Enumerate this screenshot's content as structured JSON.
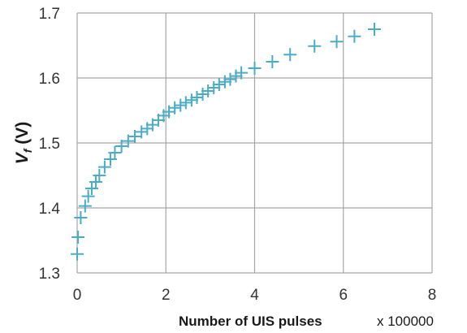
{
  "chart_data": {
    "type": "scatter",
    "xlabel": "Number of UIS pulses",
    "x_multiplier": "x 100000",
    "ylabel_main": "V",
    "ylabel_sub": "f",
    "ylabel_unit": "(V)",
    "xlim": [
      0,
      8
    ],
    "ylim": [
      1.3,
      1.7
    ],
    "xticks": [
      "0",
      "2",
      "4",
      "6",
      "8"
    ],
    "yticks": [
      "1.3",
      "1.4",
      "1.5",
      "1.6",
      "1.7"
    ],
    "grid": true,
    "marker": "plus",
    "color": "#4bacc6",
    "series": [
      {
        "x": [
          0.0,
          0.02,
          0.08,
          0.18,
          0.25,
          0.33,
          0.42,
          0.5,
          0.62,
          0.75,
          0.85,
          1.0,
          1.15,
          1.3,
          1.45,
          1.58,
          1.7,
          1.83,
          1.95,
          2.07,
          2.2,
          2.33,
          2.45,
          2.58,
          2.7,
          2.83,
          2.95,
          3.08,
          3.2,
          3.33,
          3.45,
          3.58,
          3.7,
          4.0,
          4.4,
          4.8,
          5.35,
          5.85,
          6.25,
          6.7
        ],
        "y": [
          1.329,
          1.355,
          1.385,
          1.403,
          1.418,
          1.43,
          1.44,
          1.45,
          1.463,
          1.475,
          1.485,
          1.495,
          1.503,
          1.51,
          1.517,
          1.522,
          1.528,
          1.535,
          1.542,
          1.548,
          1.554,
          1.558,
          1.562,
          1.566,
          1.57,
          1.575,
          1.58,
          1.585,
          1.59,
          1.594,
          1.598,
          1.603,
          1.608,
          1.615,
          1.625,
          1.636,
          1.649,
          1.656,
          1.664,
          1.675
        ]
      }
    ]
  }
}
